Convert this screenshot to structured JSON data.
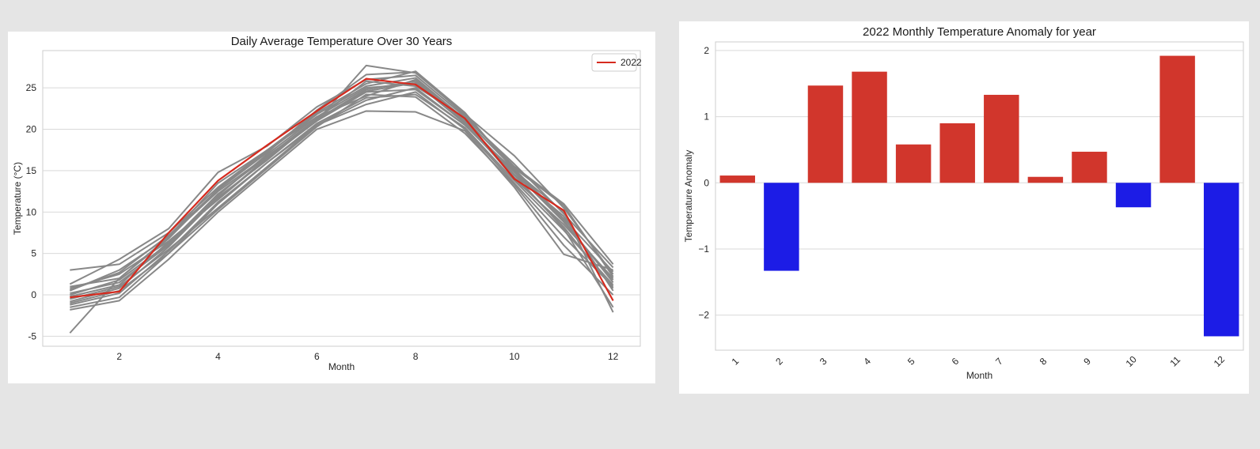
{
  "colors": {
    "background": "#e5e5e5",
    "history_line": "#888888",
    "highlight_line": "#d62a1e",
    "positive_bar": "#d1362c",
    "negative_bar": "#1c1ce6",
    "grid": "#d9d9d9"
  },
  "chart_data": [
    {
      "type": "line",
      "title": "Daily Average Temperature Over 30 Years",
      "xlabel": "Month",
      "ylabel": "Temperature (°C)",
      "xlim": [
        0.45,
        12.55
      ],
      "ylim": [
        -6.2,
        29.5
      ],
      "xticks": [
        2,
        4,
        6,
        8,
        10,
        12
      ],
      "yticks": [
        -5,
        0,
        5,
        10,
        15,
        20,
        25
      ],
      "grid": "horizontal",
      "legend": {
        "placement": "top-right",
        "entries": [
          "2022"
        ]
      },
      "x": [
        1,
        2,
        3,
        4,
        5,
        6,
        7,
        8,
        9,
        10,
        11,
        12
      ],
      "highlight_series": {
        "name": "2022",
        "values": [
          -0.3,
          0.4,
          7.5,
          13.8,
          18.1,
          22.2,
          26.1,
          25.4,
          21.3,
          14.0,
          10.2,
          -0.7
        ]
      },
      "history_series": [
        [
          -4.6,
          2.0,
          7.0,
          12.5,
          16.8,
          21.0,
          24.5,
          24.8,
          20.5,
          15.0,
          9.0,
          1.5
        ],
        [
          3.0,
          3.7,
          7.5,
          13.0,
          17.5,
          21.5,
          25.0,
          25.5,
          21.0,
          14.5,
          8.0,
          -1.5
        ],
        [
          1.3,
          4.3,
          8.0,
          14.8,
          18.0,
          22.7,
          26.0,
          26.5,
          21.5,
          15.5,
          11.0,
          3.7
        ],
        [
          0.8,
          2.5,
          6.5,
          11.5,
          16.5,
          21.0,
          27.7,
          26.8,
          21.8,
          16.8,
          10.5,
          2.5
        ],
        [
          -1.8,
          -0.7,
          4.3,
          10.0,
          15.0,
          20.0,
          22.2,
          22.1,
          19.8,
          13.0,
          4.9,
          3.0
        ],
        [
          -1.0,
          0.5,
          5.0,
          11.0,
          16.0,
          20.5,
          23.0,
          24.5,
          20.0,
          13.5,
          7.0,
          1.0
        ],
        [
          0.2,
          1.5,
          6.0,
          12.0,
          17.0,
          21.5,
          24.0,
          26.0,
          21.0,
          14.0,
          8.5,
          2.0
        ],
        [
          -0.5,
          1.0,
          5.5,
          10.5,
          15.5,
          20.5,
          23.5,
          25.0,
          20.5,
          14.5,
          9.5,
          0.5
        ],
        [
          0.5,
          3.0,
          7.0,
          13.5,
          17.5,
          22.0,
          25.5,
          27.0,
          22.0,
          15.0,
          10.0,
          -2.1
        ],
        [
          -1.5,
          -0.3,
          5.0,
          10.3,
          15.3,
          20.3,
          24.2,
          23.9,
          19.5,
          13.3,
          6.0,
          0.0
        ],
        [
          1.0,
          2.0,
          6.8,
          12.8,
          17.3,
          21.8,
          25.2,
          26.2,
          21.2,
          15.2,
          9.2,
          2.8
        ],
        [
          -0.8,
          0.8,
          5.8,
          11.8,
          16.3,
          21.2,
          24.8,
          25.8,
          20.8,
          14.8,
          8.8,
          1.8
        ],
        [
          0.0,
          1.8,
          6.2,
          12.2,
          16.7,
          21.3,
          25.8,
          25.2,
          21.4,
          15.8,
          9.8,
          3.3
        ],
        [
          -1.2,
          0.2,
          5.3,
          11.2,
          16.0,
          20.7,
          23.8,
          24.2,
          20.2,
          13.8,
          7.8,
          1.2
        ],
        [
          0.6,
          2.7,
          7.2,
          12.7,
          17.2,
          22.3,
          26.6,
          26.9,
          21.7,
          15.3,
          10.8,
          2.2
        ],
        [
          -0.2,
          1.2,
          6.4,
          11.6,
          16.6,
          21.1,
          24.6,
          25.6,
          20.7,
          14.2,
          8.2,
          0.8
        ]
      ]
    },
    {
      "type": "bar",
      "title": "2022 Monthly Temperature Anomaly for year",
      "xlabel": "Month",
      "ylabel": "Temperature Anomaly",
      "categories": [
        "1",
        "2",
        "3",
        "4",
        "5",
        "6",
        "7",
        "8",
        "9",
        "10",
        "11",
        "12"
      ],
      "values": [
        0.11,
        -1.33,
        1.47,
        1.68,
        0.58,
        0.9,
        1.33,
        0.09,
        0.47,
        -0.37,
        1.92,
        -2.32
      ],
      "ylim": [
        -2.53,
        2.13
      ],
      "yticks": [
        2,
        1,
        0,
        -1,
        -2
      ],
      "ytick_labels": [
        "2",
        "1",
        "0",
        "−1",
        "−2"
      ],
      "grid": "horizontal",
      "color_rule": "positive red, negative blue"
    }
  ]
}
